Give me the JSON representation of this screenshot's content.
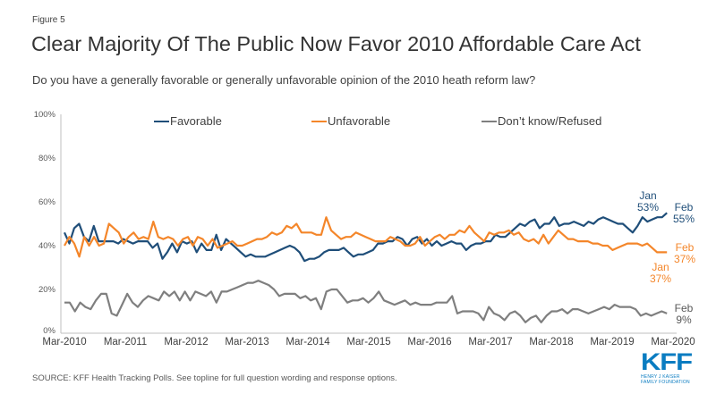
{
  "figure_label": "Figure 5",
  "title": "Clear Majority Of The Public Now Favor 2010 Affordable Care Act",
  "subtitle": "Do you have a generally favorable or generally unfavorable opinion of the 2010 heath reform law?",
  "source": "SOURCE: KFF Health Tracking Polls. See topline for full question wording and response options.",
  "logo": {
    "mark": "KFF",
    "line1": "HENRY J KAISER",
    "line2": "FAMILY FOUNDATION"
  },
  "colors": {
    "favorable": "#1F4E79",
    "unfavorable": "#F4862A",
    "dontknow": "#7F7F7F",
    "axis": "#BFBFBF"
  },
  "chart_data": {
    "type": "line",
    "title": "Clear Majority Of The Public Now Favor 2010 Affordable Care Act",
    "xlabel": "",
    "ylabel": "",
    "ylim": [
      0,
      100
    ],
    "yticks": [
      "0%",
      "20%",
      "40%",
      "60%",
      "80%",
      "100%"
    ],
    "ytick_values": [
      0,
      20,
      40,
      60,
      80,
      100
    ],
    "xticks": [
      "Mar-2010",
      "Mar-2011",
      "Mar-2012",
      "Mar-2013",
      "Mar-2014",
      "Mar-2015",
      "Mar-2016",
      "Mar-2017",
      "Mar-2018",
      "Mar-2019",
      "Mar-2020"
    ],
    "x_range": [
      "Mar-2010",
      "Mar-2020"
    ],
    "grid": false,
    "legend_position": "top",
    "series": [
      {
        "name": "Favorable",
        "key": "favorable",
        "values": [
          46,
          41,
          48,
          50,
          44,
          42,
          49,
          42,
          42,
          42,
          42,
          41,
          43,
          42,
          41,
          42,
          42,
          42,
          39,
          41,
          34,
          37,
          41,
          37,
          42,
          41,
          42,
          37,
          41,
          38,
          38,
          45,
          38,
          43,
          41,
          39,
          37,
          35,
          36,
          35,
          35,
          35,
          36,
          37,
          38,
          39,
          40,
          39,
          37,
          33,
          34,
          34,
          35,
          37,
          38,
          38,
          38,
          39,
          37,
          35,
          36,
          36,
          37,
          38,
          41,
          41,
          42,
          42,
          44,
          43,
          40,
          43,
          44,
          41,
          43,
          40,
          42,
          40,
          41,
          42,
          41,
          41,
          38,
          40,
          41,
          41,
          42,
          42,
          45,
          44,
          44,
          46,
          48,
          50,
          49,
          51,
          52,
          48,
          50,
          50,
          53,
          49,
          50,
          50,
          51,
          50,
          49,
          51,
          50,
          52,
          53,
          52,
          51,
          50,
          50,
          48,
          46,
          49,
          53,
          51,
          52,
          53,
          53,
          55
        ],
        "x_fraction_start": 0.0,
        "x_fraction_end": 0.99
      },
      {
        "name": "Unfavorable",
        "key": "unfavorable",
        "values": [
          40,
          44,
          41,
          35,
          44,
          40,
          44,
          40,
          41,
          50,
          48,
          46,
          41,
          44,
          46,
          43,
          44,
          43,
          51,
          44,
          43,
          44,
          43,
          40,
          43,
          44,
          40,
          44,
          43,
          40,
          43,
          39,
          40,
          41,
          42,
          40,
          40,
          41,
          42,
          43,
          43,
          44,
          46,
          45,
          46,
          49,
          48,
          50,
          46,
          46,
          46,
          45,
          45,
          53,
          47,
          45,
          43,
          44,
          44,
          46,
          45,
          44,
          43,
          42,
          42,
          42,
          44,
          43,
          42,
          40,
          40,
          41,
          44,
          40,
          42,
          44,
          45,
          43,
          45,
          45,
          47,
          46,
          49,
          46,
          44,
          42,
          46,
          45,
          46,
          46,
          47,
          45,
          46,
          43,
          42,
          43,
          41,
          45,
          41,
          44,
          47,
          45,
          43,
          43,
          42,
          42,
          42,
          41,
          41,
          40,
          40,
          38,
          39,
          40,
          41,
          41,
          41,
          40,
          41,
          39,
          37,
          37,
          37
        ],
        "x_fraction_start": 0.0,
        "x_fraction_end": 0.99
      },
      {
        "name": "Don't know/Refused",
        "key": "dontknow",
        "values": [
          14,
          14,
          10,
          14,
          12,
          11,
          15,
          18,
          18,
          9,
          8,
          13,
          18,
          14,
          12,
          15,
          17,
          16,
          15,
          19,
          17,
          19,
          15,
          19,
          15,
          19,
          18,
          17,
          19,
          14,
          19,
          19,
          20,
          21,
          22,
          23,
          23,
          24,
          23,
          22,
          20,
          17,
          18,
          18,
          18,
          16,
          17,
          15,
          16,
          11,
          19,
          20,
          20,
          17,
          14,
          15,
          15,
          16,
          14,
          16,
          19,
          15,
          14,
          13,
          14,
          15,
          13,
          14,
          13,
          13,
          13,
          14,
          14,
          14,
          17,
          9,
          10,
          10,
          10,
          9,
          6,
          12,
          9,
          8,
          6,
          9,
          10,
          8,
          5,
          7,
          8,
          5,
          8,
          10,
          10,
          11,
          9,
          11,
          11,
          10,
          9,
          10,
          11,
          12,
          11,
          13,
          12,
          12,
          12,
          11,
          8,
          9,
          8,
          9,
          10,
          9
        ],
        "x_fraction_start": 0.0,
        "x_fraction_end": 0.99
      }
    ],
    "legend": [
      "Favorable",
      "Unfavorable",
      "Don’t know/Refused"
    ],
    "annotations": [
      {
        "series": "favorable",
        "label": "Jan",
        "value": "53%"
      },
      {
        "series": "favorable",
        "label": "Feb",
        "value": "55%"
      },
      {
        "series": "unfavorable",
        "label": "Feb",
        "value": "37%"
      },
      {
        "series": "unfavorable",
        "label": "Jan",
        "value": "37%"
      },
      {
        "series": "dontknow",
        "label": "Feb",
        "value": "9%"
      }
    ]
  }
}
